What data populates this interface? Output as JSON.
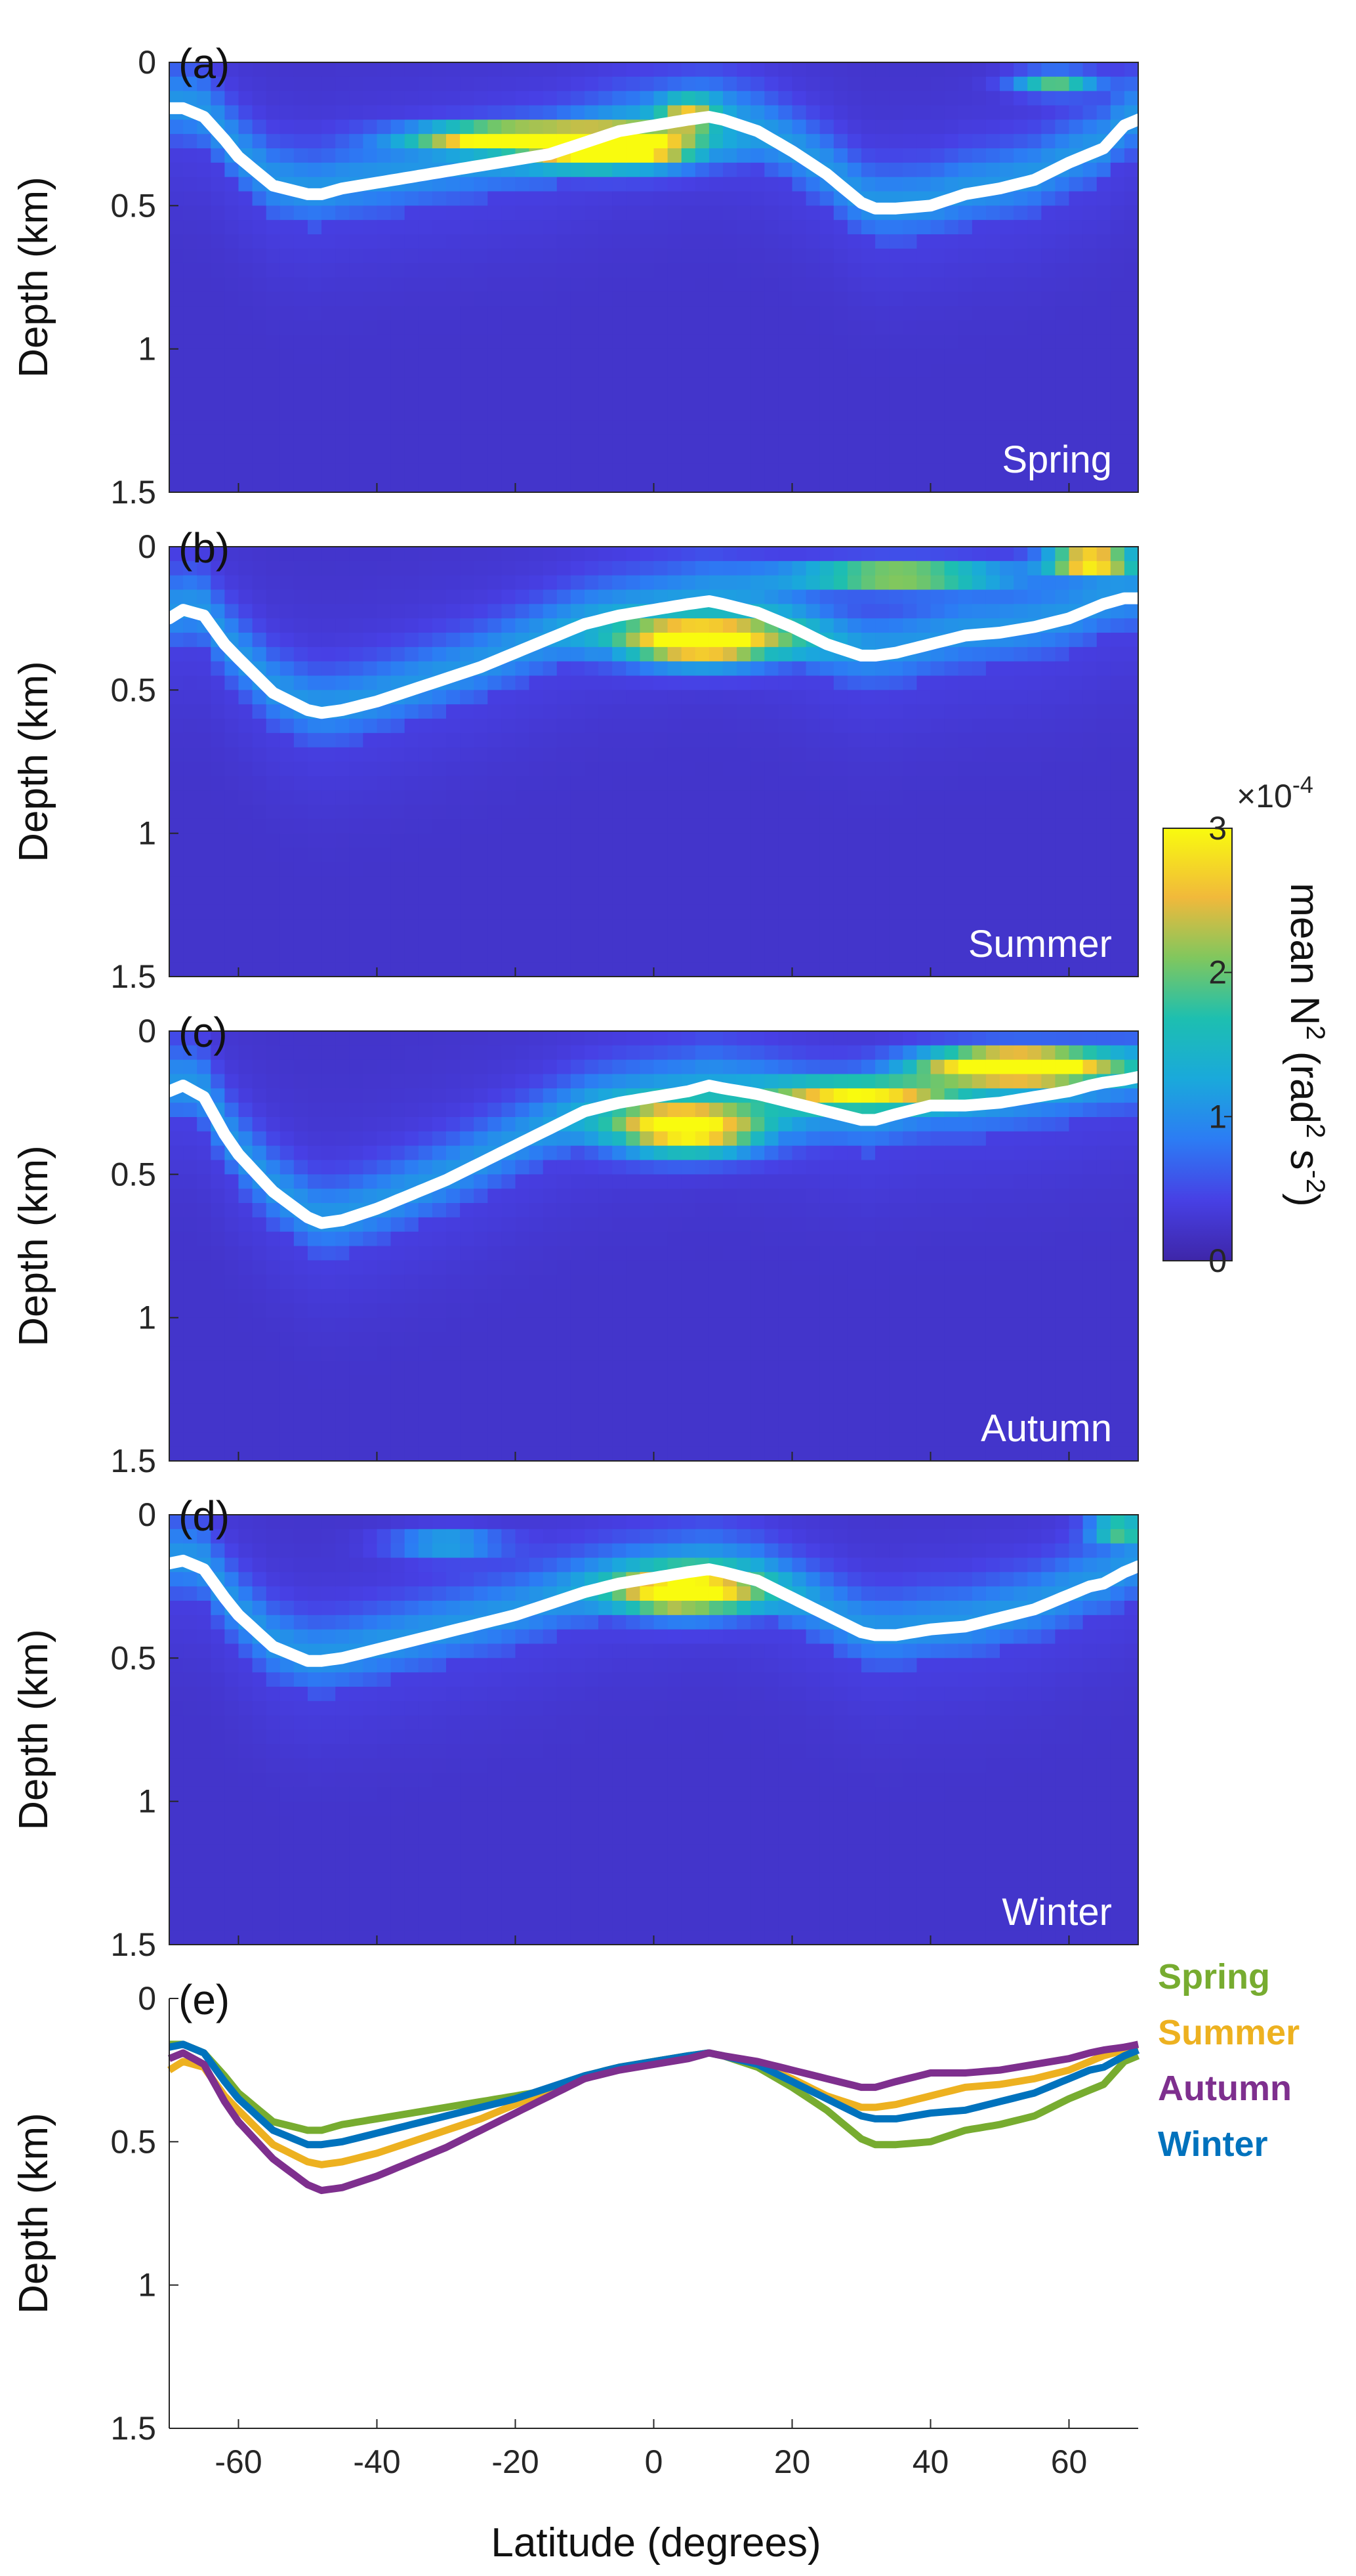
{
  "chart_data": {
    "type": "heatmap",
    "colormap": "parula",
    "colors": {
      "spring": "#77AC30",
      "summer": "#EDB120",
      "autumn": "#7E2F8E",
      "winter": "#0072BD",
      "mld_line": "#FFFFFF",
      "background": "#3E26A8"
    },
    "xlabel": "Latitude (degrees)",
    "ylabel": "Depth (km)",
    "xlim": [
      -70,
      70
    ],
    "ylim": [
      0,
      1.5
    ],
    "x_ticks": [
      "-60",
      "-40",
      "-20",
      "0",
      "20",
      "40",
      "60"
    ],
    "y_ticks": [
      "0",
      "0.5",
      "1",
      "1.5"
    ],
    "colorbar": {
      "label": "mean N2 (rad2 s-2)",
      "label_parts": [
        "mean N",
        "2",
        " (rad",
        "2",
        " s",
        "-2",
        ")"
      ],
      "exponent": "×10",
      "exponent_power": "-4",
      "ticks": [
        "0",
        "1",
        "2",
        "3"
      ],
      "range": [
        0,
        3
      ]
    },
    "panels": [
      {
        "label": "(a)",
        "season": "Spring",
        "hot": [
          [
            -22,
            0.26,
            13,
            0.04,
            0.9
          ],
          [
            -5,
            0.3,
            12,
            0.07,
            1.0
          ],
          [
            5,
            0.18,
            4,
            0.06,
            0.5
          ],
          [
            58,
            0.07,
            6,
            0.04,
            0.55
          ]
        ]
      },
      {
        "label": "(b)",
        "season": "Summer",
        "hot": [
          [
            7,
            0.33,
            12,
            0.08,
            1.05
          ],
          [
            35,
            0.1,
            15,
            0.05,
            0.75
          ],
          [
            63,
            0.05,
            6,
            0.04,
            1.1
          ]
        ]
      },
      {
        "label": "(c)",
        "season": "Autumn",
        "hot": [
          [
            5,
            0.34,
            11,
            0.09,
            1.0
          ],
          [
            30,
            0.22,
            12,
            0.05,
            0.7
          ],
          [
            52,
            0.12,
            13,
            0.06,
            1.15
          ]
        ]
      },
      {
        "label": "(d)",
        "season": "Winter",
        "hot": [
          [
            5,
            0.27,
            10,
            0.08,
            0.95
          ],
          [
            -30,
            0.1,
            8,
            0.05,
            0.35
          ],
          [
            67,
            0.05,
            4,
            0.04,
            0.6
          ]
        ]
      }
    ],
    "line_panel": {
      "label": "(e)"
    },
    "x": [
      -70,
      -68,
      -65,
      -62,
      -60,
      -55,
      -50,
      -48,
      -45,
      -40,
      -35,
      -30,
      -25,
      -20,
      -15,
      -10,
      -5,
      0,
      5,
      8,
      10,
      15,
      20,
      25,
      30,
      32,
      35,
      40,
      45,
      50,
      55,
      60,
      63,
      65,
      68,
      70
    ],
    "series": [
      {
        "name": "Spring",
        "key": "spring",
        "values": [
          0.16,
          0.16,
          0.19,
          0.27,
          0.33,
          0.43,
          0.46,
          0.46,
          0.44,
          0.42,
          0.4,
          0.38,
          0.36,
          0.34,
          0.32,
          0.28,
          0.24,
          0.22,
          0.2,
          0.19,
          0.2,
          0.24,
          0.31,
          0.39,
          0.49,
          0.51,
          0.51,
          0.5,
          0.46,
          0.44,
          0.41,
          0.35,
          0.32,
          0.3,
          0.22,
          0.2
        ]
      },
      {
        "name": "Summer",
        "key": "summer",
        "values": [
          0.25,
          0.22,
          0.24,
          0.34,
          0.39,
          0.51,
          0.57,
          0.58,
          0.57,
          0.54,
          0.5,
          0.46,
          0.42,
          0.37,
          0.32,
          0.27,
          0.24,
          0.22,
          0.2,
          0.19,
          0.2,
          0.23,
          0.28,
          0.34,
          0.38,
          0.38,
          0.37,
          0.34,
          0.31,
          0.3,
          0.28,
          0.25,
          0.22,
          0.2,
          0.18,
          0.18
        ]
      },
      {
        "name": "Autumn",
        "key": "autumn",
        "values": [
          0.21,
          0.19,
          0.23,
          0.36,
          0.43,
          0.56,
          0.65,
          0.67,
          0.66,
          0.62,
          0.57,
          0.52,
          0.46,
          0.4,
          0.34,
          0.28,
          0.25,
          0.23,
          0.21,
          0.19,
          0.2,
          0.22,
          0.25,
          0.28,
          0.31,
          0.31,
          0.29,
          0.26,
          0.26,
          0.25,
          0.23,
          0.21,
          0.19,
          0.18,
          0.17,
          0.16
        ]
      },
      {
        "name": "Winter",
        "key": "winter",
        "values": [
          0.17,
          0.16,
          0.19,
          0.29,
          0.35,
          0.46,
          0.51,
          0.51,
          0.5,
          0.47,
          0.44,
          0.41,
          0.38,
          0.35,
          0.31,
          0.27,
          0.24,
          0.22,
          0.2,
          0.19,
          0.2,
          0.23,
          0.29,
          0.35,
          0.41,
          0.42,
          0.42,
          0.4,
          0.39,
          0.36,
          0.33,
          0.28,
          0.25,
          0.24,
          0.2,
          0.18
        ]
      }
    ]
  }
}
